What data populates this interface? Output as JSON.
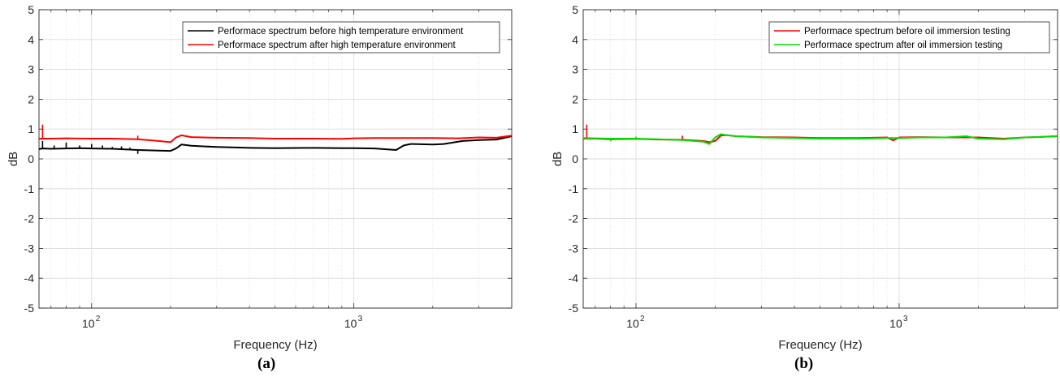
{
  "panels": [
    {
      "label": "(a)",
      "chart_data": {
        "type": "line",
        "xlabel": "Frequency (Hz)",
        "ylabel": "dB",
        "xscale": "log",
        "xlim": [
          63,
          4000
        ],
        "ylim": [
          -5,
          5
        ],
        "grid": true,
        "legend": "top-right",
        "x_tick_labels": [
          "10",
          "10"
        ],
        "x_tick_exponents": [
          "2",
          "3"
        ],
        "x_tick_values": [
          100,
          1000
        ],
        "y_ticks": [
          -5,
          -4,
          -3,
          -2,
          -1,
          0,
          1,
          2,
          3,
          4,
          5
        ],
        "series": [
          {
            "name": "Performace spectrum before high temperature environment",
            "color": "#000000",
            "x": [
              63,
              65,
              70,
              80,
              90,
              100,
              120,
              150,
              180,
              200,
              210,
              220,
              240,
              300,
              400,
              500,
              700,
              900,
              1000,
              1200,
              1450,
              1550,
              1650,
              2000,
              2200,
              2600,
              3000,
              3500,
              4000
            ],
            "y": [
              0.33,
              0.35,
              0.34,
              0.35,
              0.36,
              0.35,
              0.34,
              0.3,
              0.28,
              0.27,
              0.35,
              0.48,
              0.44,
              0.4,
              0.37,
              0.36,
              0.37,
              0.36,
              0.36,
              0.35,
              0.3,
              0.45,
              0.5,
              0.48,
              0.5,
              0.6,
              0.63,
              0.65,
              0.76
            ],
            "spikes": [
              {
                "x": 65,
                "y": 0.6
              },
              {
                "x": 72,
                "y": 0.45
              },
              {
                "x": 80,
                "y": 0.55
              },
              {
                "x": 90,
                "y": 0.45
              },
              {
                "x": 100,
                "y": 0.5
              },
              {
                "x": 110,
                "y": 0.45
              },
              {
                "x": 120,
                "y": 0.4
              },
              {
                "x": 130,
                "y": 0.42
              },
              {
                "x": 140,
                "y": 0.38
              },
              {
                "x": 150,
                "y": 0.17
              }
            ]
          },
          {
            "name": "Performace spectrum after high temperature environment",
            "color": "#ff0000",
            "x": [
              63,
              70,
              80,
              100,
              120,
              150,
              180,
              200,
              210,
              220,
              240,
              300,
              400,
              500,
              700,
              900,
              1000,
              1200,
              1500,
              2000,
              2500,
              3000,
              3500,
              4000
            ],
            "y": [
              0.68,
              0.68,
              0.69,
              0.68,
              0.68,
              0.66,
              0.6,
              0.56,
              0.72,
              0.79,
              0.73,
              0.71,
              0.7,
              0.68,
              0.68,
              0.67,
              0.69,
              0.7,
              0.7,
              0.7,
              0.69,
              0.72,
              0.71,
              0.78
            ],
            "spikes": [
              {
                "x": 65,
                "y": 1.15
              },
              {
                "x": 150,
                "y": 0.78
              }
            ]
          }
        ]
      }
    },
    {
      "label": "(b)",
      "chart_data": {
        "type": "line",
        "xlabel": "Frequency (Hz)",
        "ylabel": "dB",
        "xscale": "log",
        "xlim": [
          63,
          4000
        ],
        "ylim": [
          -5,
          5
        ],
        "grid": true,
        "legend": "top-right",
        "x_tick_labels": [
          "10",
          "10"
        ],
        "x_tick_exponents": [
          "2",
          "3"
        ],
        "x_tick_values": [
          100,
          1000
        ],
        "y_ticks": [
          -5,
          -4,
          -3,
          -2,
          -1,
          0,
          1,
          2,
          3,
          4,
          5
        ],
        "series": [
          {
            "name": "Performace spectrum before oil immersion testing",
            "color": "#ff0000",
            "x": [
              63,
              70,
              80,
              100,
              120,
              150,
              180,
              190,
              200,
              210,
              220,
              240,
              300,
              400,
              500,
              700,
              900,
              950,
              1000,
              1200,
              1500,
              2000,
              2500,
              3000,
              3500,
              4000
            ],
            "y": [
              0.68,
              0.68,
              0.66,
              0.67,
              0.65,
              0.64,
              0.6,
              0.56,
              0.6,
              0.78,
              0.8,
              0.76,
              0.73,
              0.72,
              0.7,
              0.7,
              0.72,
              0.62,
              0.72,
              0.73,
              0.72,
              0.72,
              0.68,
              0.72,
              0.74,
              0.76
            ],
            "spikes": [
              {
                "x": 65,
                "y": 1.15
              },
              {
                "x": 150,
                "y": 0.78
              }
            ]
          },
          {
            "name": "Performace spectrum after oil immersion testing",
            "color": "#00dd00",
            "x": [
              63,
              70,
              80,
              100,
              120,
              150,
              180,
              190,
              200,
              210,
              220,
              240,
              300,
              400,
              500,
              700,
              900,
              1000,
              1200,
              1500,
              1800,
              2000,
              2500,
              3000,
              3500,
              4000
            ],
            "y": [
              0.7,
              0.69,
              0.68,
              0.68,
              0.66,
              0.63,
              0.58,
              0.5,
              0.72,
              0.83,
              0.8,
              0.76,
              0.72,
              0.7,
              0.68,
              0.68,
              0.7,
              0.7,
              0.72,
              0.72,
              0.76,
              0.68,
              0.66,
              0.72,
              0.74,
              0.77
            ],
            "spikes": [
              {
                "x": 80,
                "y": 0.6
              },
              {
                "x": 100,
                "y": 0.75
              }
            ]
          }
        ]
      }
    }
  ]
}
